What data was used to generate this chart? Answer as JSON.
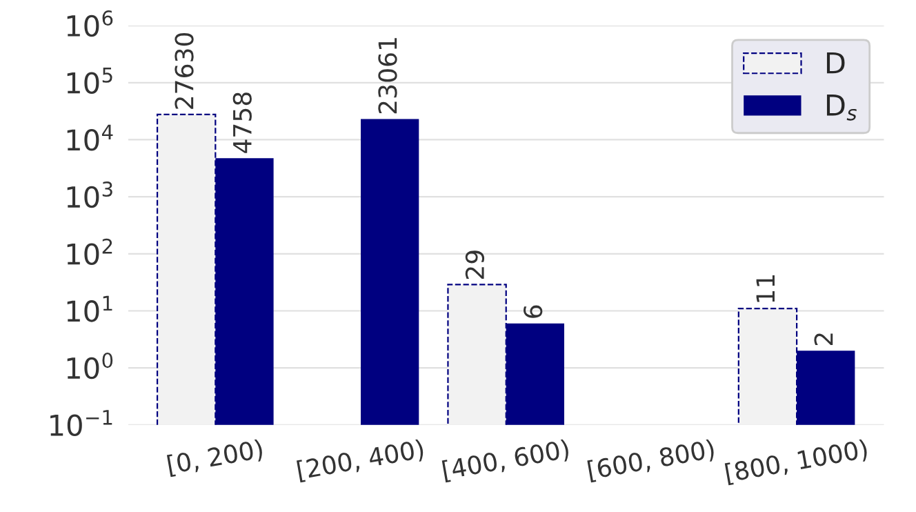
{
  "chart_data": {
    "type": "bar",
    "categories": [
      "[0, 200)",
      "[200, 400)",
      "[400, 600)",
      "[600, 800)",
      "[800, 1000)"
    ],
    "series": [
      {
        "name": "D",
        "color": "#f2f2f2",
        "line_style": "dashed",
        "values": [
          27630,
          null,
          29,
          null,
          11
        ]
      },
      {
        "name": "D$_{s}$",
        "color": "#000080",
        "values": [
          4758,
          23061,
          6,
          null,
          2
        ]
      }
    ],
    "log": true,
    "ylim": [
      0.1,
      1000000
    ],
    "yticks": [
      {
        "value": 0.1,
        "label": "10$^{−1}$"
      },
      {
        "value": 1,
        "label": "10$^{0}$"
      },
      {
        "value": 10,
        "label": "10$^{1}$"
      },
      {
        "value": 100,
        "label": "10$^{2}$"
      },
      {
        "value": 1000,
        "label": "10$^{3}$"
      },
      {
        "value": 10000,
        "label": "10$^{4}$"
      },
      {
        "value": 100000,
        "label": "10$^{5}$"
      },
      {
        "value": 1000000,
        "label": "10$^{6}$"
      }
    ],
    "grid": "y",
    "legend": "top right",
    "data_labels": true
  }
}
